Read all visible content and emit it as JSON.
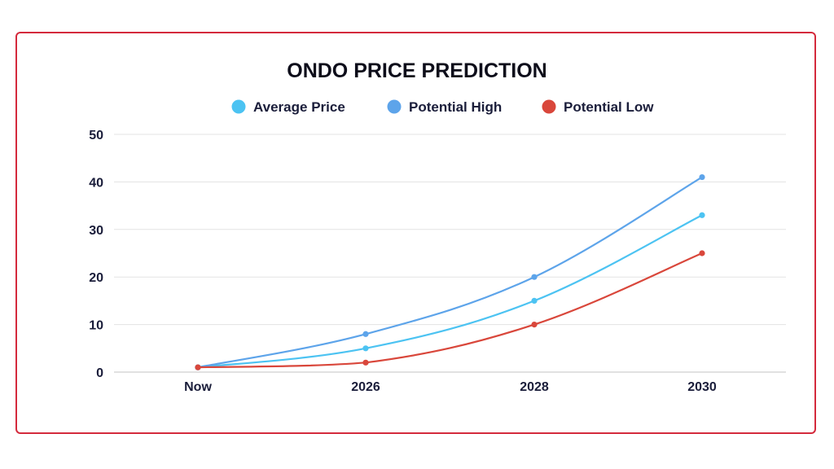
{
  "chart_data": {
    "type": "line",
    "title": "ONDO PRICE PREDICTION",
    "categories": [
      "Now",
      "2026",
      "2028",
      "2030"
    ],
    "ylim": [
      0,
      50
    ],
    "yticks": [
      0,
      10,
      20,
      30,
      40,
      50
    ],
    "ytick_labels": [
      "0",
      "10",
      "20",
      "30",
      "40",
      "50"
    ],
    "legend_position": "top-center",
    "grid": true,
    "series": [
      {
        "name": "Average Price",
        "color": "#4cc3f2",
        "values": [
          1,
          5,
          15,
          33
        ]
      },
      {
        "name": "Potential High",
        "color": "#5da4ea",
        "values": [
          1,
          8,
          20,
          41
        ]
      },
      {
        "name": "Potential Low",
        "color": "#d9473b",
        "values": [
          1,
          2,
          10,
          25
        ]
      }
    ]
  }
}
